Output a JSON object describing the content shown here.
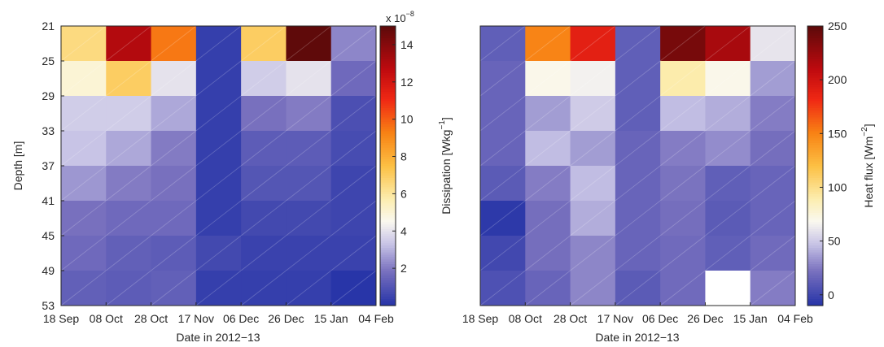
{
  "chart_data": [
    {
      "type": "heatmap",
      "xlabel": "Date in 2012−13",
      "ylabel": "Depth [m]",
      "x_ticks": [
        "18 Sep",
        "08 Oct",
        "28 Oct",
        "17 Nov",
        "06 Dec",
        "26 Dec",
        "15 Jan",
        "04 Feb"
      ],
      "y_ticks": [
        "21",
        "25",
        "29",
        "33",
        "37",
        "41",
        "45",
        "49",
        "53"
      ],
      "ylim": [
        21,
        53
      ],
      "colorbar": {
        "label": "Dissipation [Wkg",
        "label_sup": "−1",
        "label_end": "]",
        "multiplier": "x 10",
        "multiplier_sup": "−8",
        "range": [
          0,
          15
        ],
        "ticks": [
          "2",
          "4",
          "6",
          "8",
          "10",
          "12",
          "14"
        ]
      },
      "values": [
        [
          6.5,
          13.0,
          9.5,
          0.3,
          7.0,
          15.0,
          2.2
        ],
        [
          5.0,
          7.0,
          4.0,
          0.3,
          3.5,
          4.0,
          1.6
        ],
        [
          3.5,
          3.5,
          2.8,
          0.3,
          1.8,
          2.0,
          0.8
        ],
        [
          3.3,
          2.8,
          2.0,
          0.3,
          1.2,
          1.2,
          0.7
        ],
        [
          2.5,
          2.0,
          1.8,
          0.3,
          1.0,
          1.0,
          0.5
        ],
        [
          1.8,
          1.6,
          1.6,
          0.3,
          0.6,
          0.6,
          0.5
        ],
        [
          1.6,
          1.3,
          1.2,
          0.6,
          0.4,
          0.4,
          0.4
        ],
        [
          1.3,
          1.2,
          1.3,
          0.3,
          0.3,
          0.3,
          0.0
        ]
      ]
    },
    {
      "type": "heatmap",
      "xlabel": "Date in 2012−13",
      "x_ticks": [
        "18 Sep",
        "08 Oct",
        "28 Oct",
        "17 Nov",
        "06 Dec",
        "26 Dec",
        "15 Jan",
        "04 Feb"
      ],
      "ylim": [
        21,
        53
      ],
      "colorbar": {
        "label": "Heat flux [Wm",
        "label_sup": "−2",
        "label_end": "]",
        "range": [
          -10,
          250
        ],
        "ticks": [
          "0",
          "50",
          "100",
          "150",
          "200",
          "250"
        ]
      },
      "values": [
        [
          12,
          150,
          190,
          12,
          240,
          220,
          60
        ],
        [
          15,
          70,
          65,
          12,
          90,
          70,
          35
        ],
        [
          15,
          35,
          50,
          12,
          45,
          40,
          25
        ],
        [
          15,
          45,
          35,
          15,
          25,
          30,
          20
        ],
        [
          10,
          25,
          45,
          15,
          22,
          12,
          15
        ],
        [
          -8,
          20,
          40,
          15,
          20,
          10,
          15
        ],
        [
          0,
          20,
          28,
          15,
          18,
          12,
          18
        ],
        [
          5,
          15,
          28,
          10,
          18,
          null,
          25
        ]
      ]
    }
  ]
}
